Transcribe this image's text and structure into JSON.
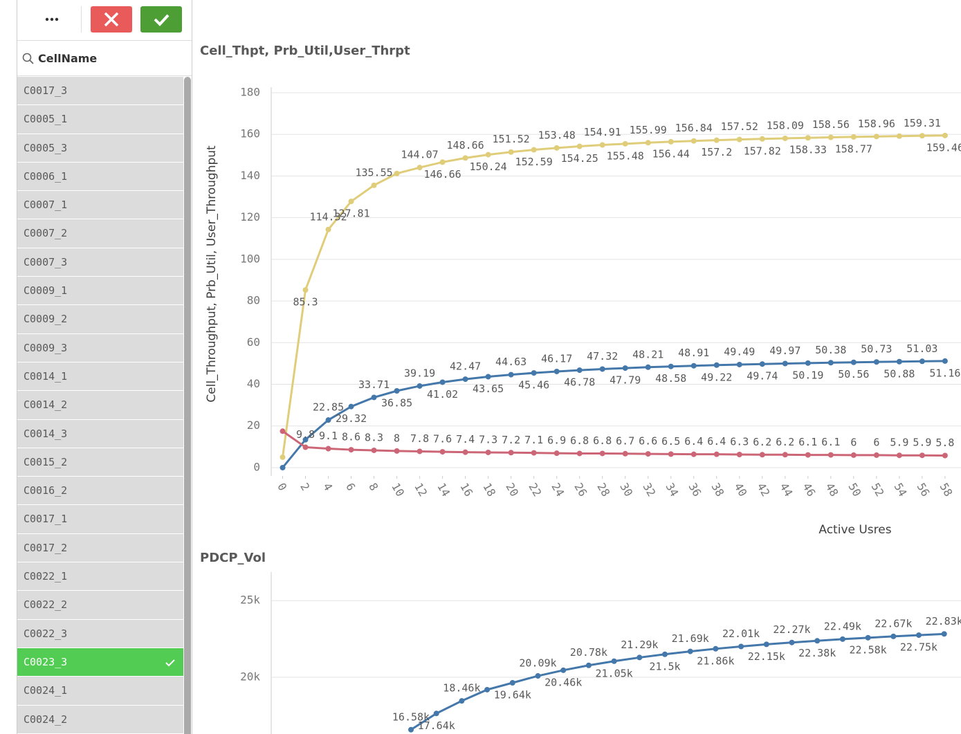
{
  "listbox": {
    "search_label": "CellName",
    "items": [
      "C0017_3",
      "C0005_1",
      "C0005_3",
      "C0006_1",
      "C0007_1",
      "C0007_2",
      "C0007_3",
      "C0009_1",
      "C0009_2",
      "C0009_3",
      "C0014_1",
      "C0014_2",
      "C0014_3",
      "C0015_2",
      "C0016_2",
      "C0017_1",
      "C0017_2",
      "C0022_1",
      "C0022_2",
      "C0022_3",
      "C0023_3",
      "C0024_1",
      "C0024_2"
    ],
    "selected_index": 20
  },
  "chart_data": [
    {
      "type": "line",
      "title": "Cell_Thpt, Prb_Util,User_Thrpt",
      "y_label": "Cell_Throughput, Prb_Util, User_Throughput",
      "x_label": "Active Usres",
      "x": [
        0,
        2,
        4,
        6,
        8,
        10,
        12,
        14,
        16,
        18,
        20,
        22,
        24,
        26,
        28,
        30,
        32,
        34,
        36,
        38,
        40,
        42,
        44,
        46,
        48,
        50,
        52,
        54,
        56,
        58
      ],
      "xlim": [
        -1,
        59.4
      ],
      "xticks": [
        0,
        2,
        4,
        6,
        8,
        10,
        12,
        14,
        16,
        18,
        20,
        22,
        24,
        26,
        28,
        30,
        32,
        34,
        36,
        38,
        40,
        42,
        44,
        46,
        48,
        50,
        52,
        54,
        56,
        58
      ],
      "ylim": [
        -4,
        180
      ],
      "yticks": [
        0,
        20,
        40,
        60,
        80,
        100,
        120,
        140,
        160,
        180
      ],
      "grid": true,
      "series": [
        {
          "color": "#e0cd7a",
          "values": [
            5,
            85.3,
            114.32,
            127.81,
            135.55,
            141.2,
            144.07,
            146.66,
            148.66,
            150.24,
            151.52,
            152.59,
            153.48,
            154.25,
            154.91,
            155.48,
            155.99,
            156.44,
            156.84,
            157.2,
            157.52,
            157.82,
            158.09,
            158.33,
            158.56,
            158.77,
            158.96,
            159.14,
            159.31,
            159.46
          ],
          "value_labels": [
            null,
            "85.3",
            "114.32",
            "127.81",
            "135.55",
            null,
            "144.07",
            "146.66",
            "148.66",
            "150.24",
            "151.52",
            "152.59",
            "153.48",
            "154.25",
            "154.91",
            "155.48",
            "155.99",
            "156.44",
            "156.84",
            "157.2",
            "157.52",
            "157.82",
            "158.09",
            "158.33",
            "158.56",
            "158.77",
            "158.96",
            null,
            "159.31",
            "159.46"
          ]
        },
        {
          "color": "#4477aa",
          "values": [
            0,
            13.4,
            22.85,
            29.32,
            33.71,
            36.85,
            39.19,
            41.02,
            42.47,
            43.65,
            44.63,
            45.46,
            46.17,
            46.78,
            47.32,
            47.79,
            48.21,
            48.58,
            48.91,
            49.22,
            49.49,
            49.74,
            49.97,
            50.19,
            50.38,
            50.56,
            50.73,
            50.88,
            51.03,
            51.16
          ],
          "value_labels": [
            null,
            null,
            "22.85",
            "29.32",
            "33.71",
            "36.85",
            "39.19",
            "41.02",
            "42.47",
            "43.65",
            "44.63",
            "45.46",
            "46.17",
            "46.78",
            "47.32",
            "47.79",
            "48.21",
            "48.58",
            "48.91",
            "49.22",
            "49.49",
            "49.74",
            "49.97",
            "50.19",
            "50.38",
            "50.56",
            "50.73",
            "50.88",
            "51.03",
            "51.16"
          ]
        },
        {
          "color": "#cc6677",
          "values": [
            17.5,
            9.8,
            9.1,
            8.6,
            8.3,
            8,
            7.8,
            7.6,
            7.4,
            7.3,
            7.2,
            7.1,
            6.9,
            6.8,
            6.8,
            6.7,
            6.6,
            6.5,
            6.4,
            6.4,
            6.3,
            6.2,
            6.2,
            6.1,
            6.1,
            6,
            6,
            5.9,
            5.9,
            5.8
          ],
          "value_labels": [
            null,
            "9.8",
            "9.1",
            "8.6",
            "8.3",
            "8",
            "7.8",
            "7.6",
            "7.4",
            "7.3",
            "7.2",
            "7.1",
            "6.9",
            "6.8",
            "6.8",
            "6.7",
            "6.6",
            "6.5",
            "6.4",
            "6.4",
            "6.3",
            "6.2",
            "6.2",
            "6.1",
            "6.1",
            "6",
            "6",
            "5.9",
            "5.9",
            "5.8"
          ]
        }
      ]
    },
    {
      "type": "line",
      "title": "PDCP_Vol",
      "ylim": [
        16300,
        26500
      ],
      "yticks": [
        {
          "value": 20000,
          "label": "20k"
        },
        {
          "value": 25000,
          "label": "25k"
        }
      ],
      "grid": true,
      "series": [
        {
          "color": "#4477aa",
          "values": [
            16580,
            17640,
            18460,
            19190,
            19640,
            20090,
            20460,
            20780,
            21050,
            21290,
            21500,
            21690,
            21860,
            22010,
            22150,
            22270,
            22380,
            22490,
            22580,
            22670,
            22750,
            22830
          ],
          "value_labels": [
            "16.58k",
            "17.64k",
            "18.46k",
            null,
            "19.64k",
            "20.09k",
            "20.46k",
            "20.78k",
            "21.05k",
            "21.29k",
            "21.5k",
            "21.69k",
            "21.86k",
            "22.01k",
            "22.15k",
            "22.27k",
            "22.38k",
            "22.49k",
            "22.58k",
            "22.67k",
            "22.75k",
            "22.83k"
          ]
        }
      ]
    }
  ]
}
